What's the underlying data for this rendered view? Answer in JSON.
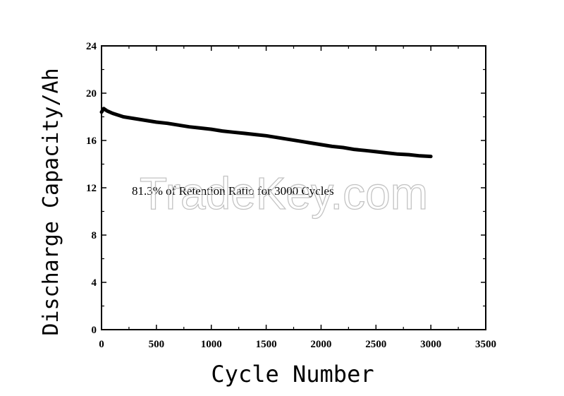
{
  "chart_data": {
    "type": "line",
    "title": "",
    "xlabel": "Cycle Number",
    "ylabel": "Discharge Capacity/Ah",
    "xlim": [
      0,
      3500
    ],
    "ylim": [
      0,
      24
    ],
    "xticks": [
      "0",
      "500",
      "1000",
      "1500",
      "2000",
      "2500",
      "3000",
      "3500"
    ],
    "yticks": [
      "0",
      "4",
      "8",
      "12",
      "16",
      "20",
      "24"
    ],
    "grid": false,
    "series": [
      {
        "x": [
          0,
          20,
          50,
          100,
          200,
          300,
          400,
          500,
          600,
          700,
          800,
          900,
          1000,
          1100,
          1200,
          1300,
          1400,
          1500,
          1600,
          1700,
          1800,
          1900,
          2000,
          2100,
          2200,
          2300,
          2400,
          2500,
          2600,
          2700,
          2800,
          2900,
          3000
        ],
        "values": [
          18.4,
          18.7,
          18.5,
          18.3,
          18.0,
          17.85,
          17.7,
          17.55,
          17.45,
          17.3,
          17.15,
          17.05,
          16.95,
          16.8,
          16.7,
          16.6,
          16.5,
          16.4,
          16.25,
          16.1,
          15.95,
          15.8,
          15.65,
          15.5,
          15.4,
          15.25,
          15.15,
          15.05,
          14.95,
          14.85,
          14.8,
          14.7,
          14.65
        ]
      }
    ],
    "annotation": "81.3% of Retention Ratio for 3000 Cycles"
  },
  "watermark": "TradeKey.com"
}
